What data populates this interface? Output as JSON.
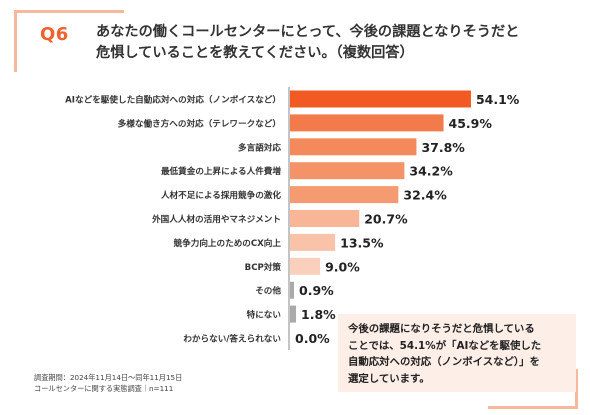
{
  "question": {
    "label": "Q6",
    "title_line1": "あなたの働くコールセンターにとって、今後の課題となりそうだと",
    "title_line2": "危惧していることを教えてください。（複数回答）"
  },
  "chart_data": {
    "type": "bar",
    "orientation": "horizontal",
    "value_suffix": "%",
    "xlim": [
      0,
      60
    ],
    "categories": [
      "AIなどを駆使した自動応対への対応（ノンボイスなど）",
      "多様な働き方への対応（テレワークなど）",
      "多言語対応",
      "最低賃金の上昇による人件費増",
      "人材不足による採用競争の激化",
      "外国人人材の活用やマネジメント",
      "競争力向上のためのCX向上",
      "BCP対策",
      "その他",
      "特にない",
      "わからない/答えられない"
    ],
    "values": [
      54.1,
      45.9,
      37.8,
      34.2,
      32.4,
      20.7,
      13.5,
      9.0,
      0.9,
      1.8,
      0.0
    ],
    "labels": [
      "54.1%",
      "45.9%",
      "37.8%",
      "34.2%",
      "32.4%",
      "20.7%",
      "13.5%",
      "9.0%",
      "0.9%",
      "1.8%",
      "0.0%"
    ],
    "colors": [
      "#f15a22",
      "#f37a4a",
      "#f48a5c",
      "#f49368",
      "#f59b72",
      "#f8b597",
      "#f9c3aa",
      "#fad0bd",
      "#aaaaaa",
      "#aaaaaa",
      "#aaaaaa"
    ]
  },
  "note": {
    "line1": "今後の課題になりそうだと危惧している",
    "line2": "ことでは、54.1%が「AIなどを駆使した",
    "line3": "自動応対への対応（ノンボイスなど）」を",
    "line4": "選定しています。"
  },
  "footer": {
    "line1": "調査期間：2024年11月14日～同年11月15日",
    "line2": "コールセンターに関する実態調査｜n=111"
  }
}
